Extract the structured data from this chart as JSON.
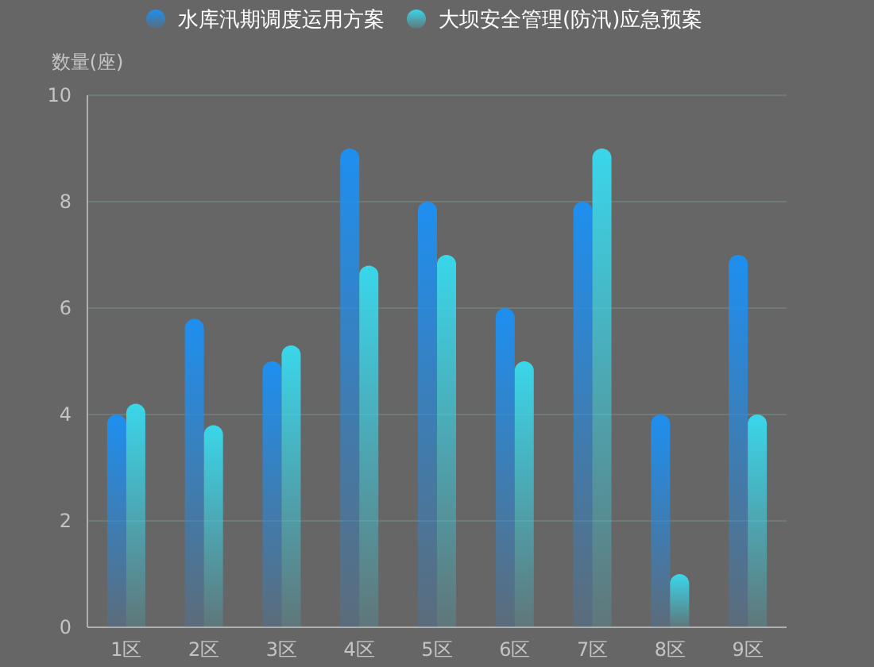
{
  "chart_data": {
    "type": "bar",
    "ylabel": "数量(座)",
    "categories": [
      "1区",
      "2区",
      "3区",
      "4区",
      "5区",
      "6区",
      "7区",
      "8区",
      "9区"
    ],
    "series": [
      {
        "name": "水库汛期调度运用方案",
        "color": "#1e8ff0",
        "values": [
          4,
          5.8,
          5,
          9,
          8,
          6,
          8,
          4,
          7
        ]
      },
      {
        "name": "大坝安全管理(防汛)应急预案",
        "color": "#3ad6ea",
        "values": [
          4.2,
          3.8,
          5.3,
          6.8,
          7,
          5,
          9,
          1,
          4
        ]
      }
    ],
    "ylim": [
      0,
      10
    ],
    "yticks": [
      0,
      2,
      4,
      6,
      8,
      10
    ],
    "grid": "y",
    "legend": "top"
  }
}
